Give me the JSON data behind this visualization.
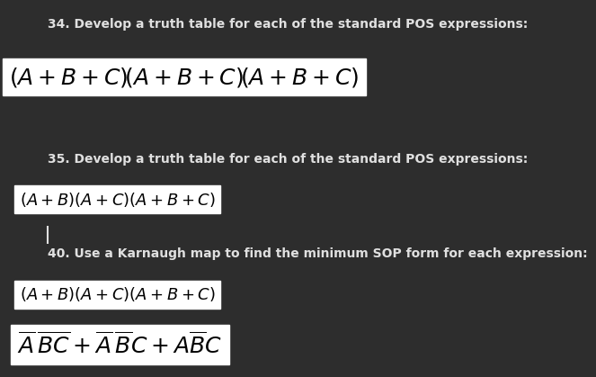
{
  "bg_color": "#2d2d2d",
  "text_color": "#e0e0e0",
  "box_color": "#ffffff",
  "title_fontsize": 10,
  "math_fontsize": 13,
  "math_fontsize_large": 18,
  "line1_title": "34. Develop a truth table for each of the standard POS expressions:",
  "line2_title": "35. Develop a truth table for each of the standard POS expressions:",
  "line3_title": "40. Use a Karnaugh map to find the minimum SOP form for each expression:"
}
